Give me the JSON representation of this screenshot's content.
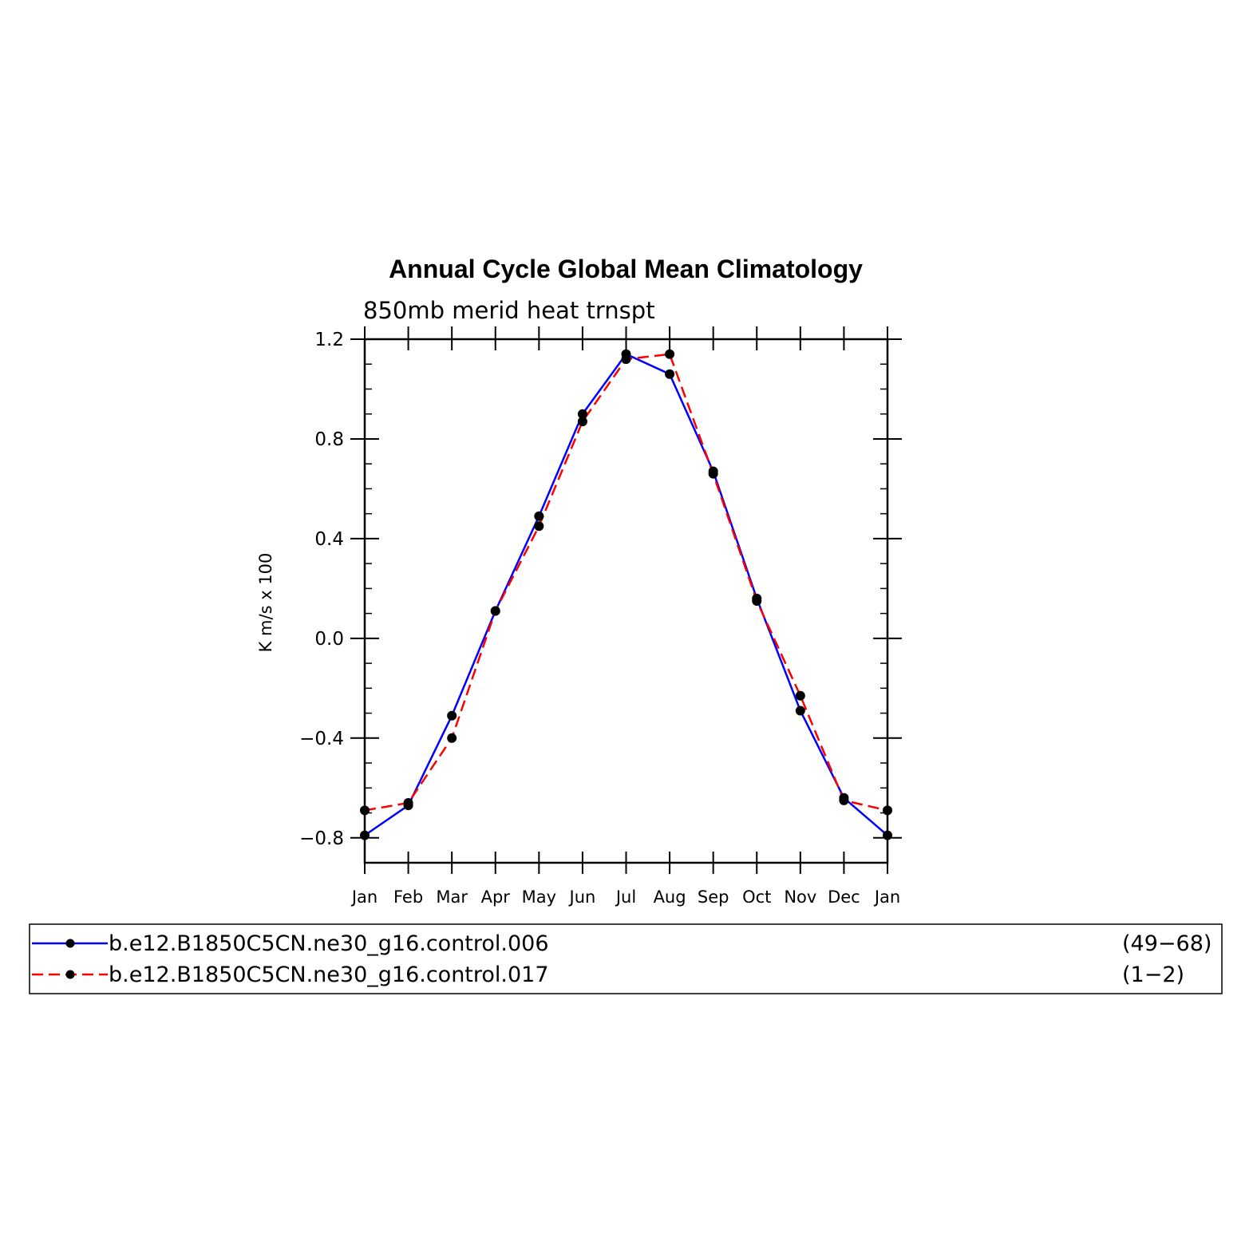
{
  "chart_data": {
    "type": "line",
    "title": "Annual Cycle Global Mean Climatology",
    "subtitle": "850mb merid heat trnspt",
    "xlabel": "",
    "ylabel": "K m/s x 100",
    "categories": [
      "Jan",
      "Feb",
      "Mar",
      "Apr",
      "May",
      "Jun",
      "Jul",
      "Aug",
      "Sep",
      "Oct",
      "Nov",
      "Dec",
      "Jan"
    ],
    "ylim": [
      -0.9,
      1.2
    ],
    "yticks": [
      "1.2",
      "0.8",
      "0.4",
      "0.0",
      "−0.4",
      "−0.8"
    ],
    "ytick_values": [
      1.2,
      0.8,
      0.4,
      0.0,
      -0.4,
      -0.8
    ],
    "grid": false,
    "legend_position": "bottom",
    "series": [
      {
        "name": "b.e12.B1850C5CN.ne30_g16.control.006",
        "years": "(49−68)",
        "color": "#0000ff",
        "dash": "solid",
        "values": [
          -0.79,
          -0.67,
          -0.31,
          0.11,
          0.49,
          0.9,
          1.14,
          1.06,
          0.67,
          0.16,
          -0.29,
          -0.64,
          -0.79
        ]
      },
      {
        "name": "b.e12.B1850C5CN.ne30_g16.control.017",
        "years": "(1−2)",
        "color": "#ff0000",
        "dash": "dashed",
        "values": [
          -0.69,
          -0.66,
          -0.4,
          0.11,
          0.45,
          0.87,
          1.12,
          1.14,
          0.66,
          0.15,
          -0.23,
          -0.65,
          -0.69
        ]
      }
    ],
    "marker_color": "#000000"
  }
}
